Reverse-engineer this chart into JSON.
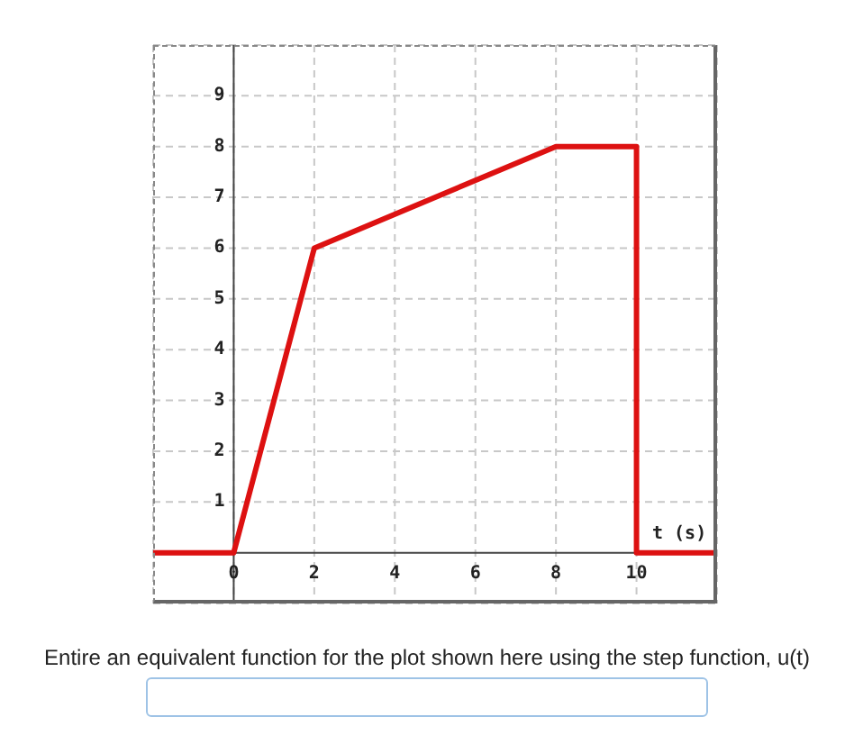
{
  "chart_data": {
    "type": "line",
    "xlabel": "t (s)",
    "xlim": [
      -2,
      12
    ],
    "ylim": [
      -1,
      10
    ],
    "xticks": [
      0,
      2,
      4,
      6,
      8,
      10
    ],
    "yticks": [
      1,
      2,
      3,
      4,
      5,
      6,
      7,
      8,
      9
    ],
    "grid": true,
    "marker": "none",
    "line_style": "solid",
    "series": [
      {
        "color": "#dd1111",
        "x": [
          -2,
          0,
          2,
          8,
          10,
          10,
          12
        ],
        "values": [
          0,
          0,
          6,
          8,
          8,
          0,
          0
        ]
      }
    ],
    "annotations": [
      "Entire an equivalent function for the plot shown here using the step function, u(t)"
    ]
  }
}
